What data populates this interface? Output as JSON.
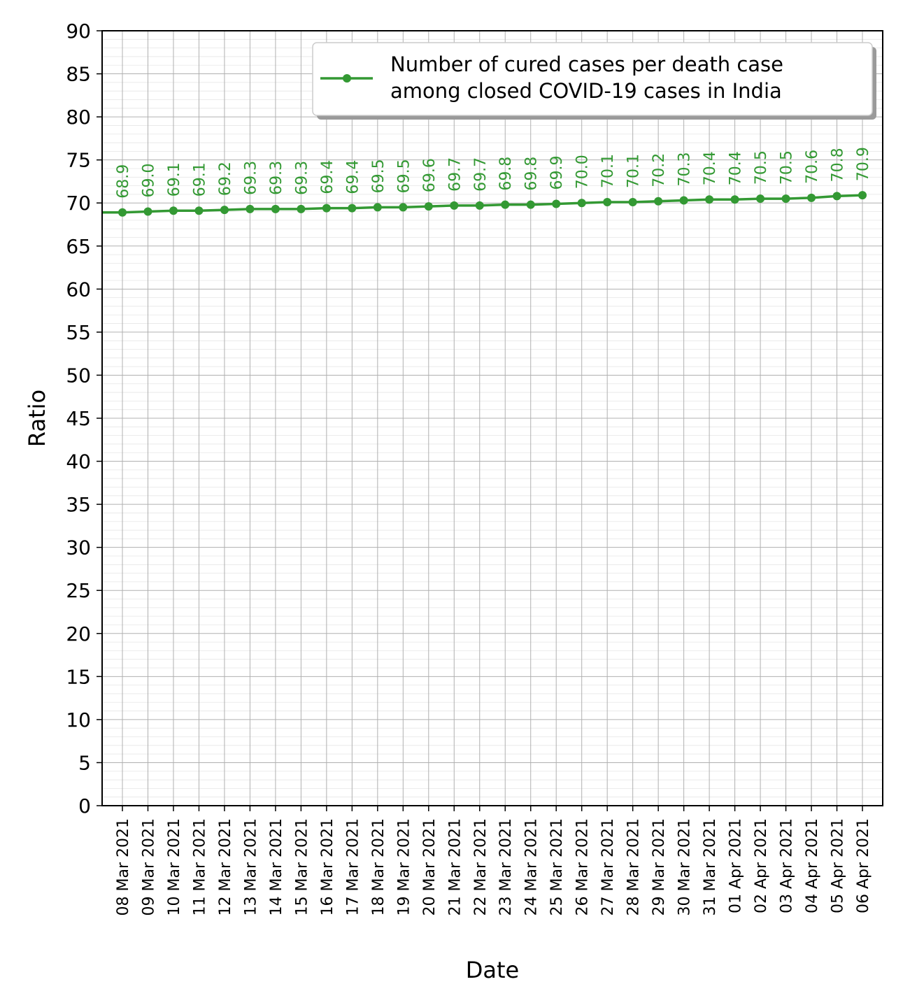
{
  "chart_data": {
    "type": "line",
    "xlabel": "Date",
    "ylabel": "Ratio",
    "ylim": [
      0,
      90
    ],
    "yticks": [
      0,
      5,
      10,
      15,
      20,
      25,
      30,
      35,
      40,
      45,
      50,
      55,
      60,
      65,
      70,
      75,
      80,
      85,
      90
    ],
    "grid": true,
    "legend_position": "top-right",
    "categories": [
      "08 Mar 2021",
      "09 Mar 2021",
      "10 Mar 2021",
      "11 Mar 2021",
      "12 Mar 2021",
      "13 Mar 2021",
      "14 Mar 2021",
      "15 Mar 2021",
      "16 Mar 2021",
      "17 Mar 2021",
      "18 Mar 2021",
      "19 Mar 2021",
      "20 Mar 2021",
      "21 Mar 2021",
      "22 Mar 2021",
      "23 Mar 2021",
      "24 Mar 2021",
      "25 Mar 2021",
      "26 Mar 2021",
      "27 Mar 2021",
      "28 Mar 2021",
      "29 Mar 2021",
      "30 Mar 2021",
      "31 Mar 2021",
      "01 Apr 2021",
      "02 Apr 2021",
      "03 Apr 2021",
      "04 Apr 2021",
      "05 Apr 2021",
      "06 Apr 2021"
    ],
    "series": [
      {
        "name": "Number of cured cases per death case\namong closed COVID-19 cases in India",
        "color": "#339933",
        "values": [
          68.9,
          69.0,
          69.1,
          69.1,
          69.2,
          69.3,
          69.3,
          69.3,
          69.4,
          69.4,
          69.5,
          69.5,
          69.6,
          69.7,
          69.7,
          69.8,
          69.8,
          69.9,
          70.0,
          70.1,
          70.1,
          70.2,
          70.3,
          70.4,
          70.4,
          70.5,
          70.5,
          70.6,
          70.8,
          70.9
        ],
        "labels": [
          "68.9",
          "69.0",
          "69.1",
          "69.1",
          "69.2",
          "69.3",
          "69.3",
          "69.3",
          "69.4",
          "69.4",
          "69.5",
          "69.5",
          "69.6",
          "69.7",
          "69.7",
          "69.8",
          "69.8",
          "69.9",
          "70.0",
          "70.1",
          "70.1",
          "70.2",
          "70.3",
          "70.4",
          "70.4",
          "70.5",
          "70.5",
          "70.6",
          "70.8",
          "70.9"
        ]
      }
    ],
    "legend": [
      "Number of cured cases per death case",
      "among closed COVID-19 cases in India"
    ]
  }
}
